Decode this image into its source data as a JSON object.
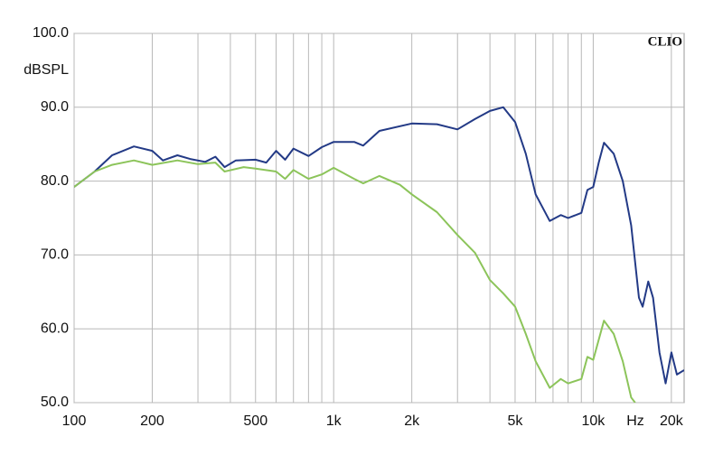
{
  "chart_data": {
    "type": "line",
    "watermark": "CLIO",
    "y_label": "dBSPL",
    "x_unit": "Hz",
    "log_x": true,
    "grid": true,
    "xlim": [
      100,
      22400
    ],
    "ylim": [
      50,
      100
    ],
    "xticks": [
      100,
      200,
      500,
      {
        "value": 1000,
        "label": "1k"
      },
      {
        "value": 2000,
        "label": "2k"
      },
      {
        "value": 5000,
        "label": "5k"
      },
      {
        "value": 10000,
        "label": "10k"
      },
      {
        "value": 20000,
        "label": "20k"
      }
    ],
    "xminor": [
      300,
      400,
      600,
      700,
      800,
      900,
      3000,
      4000,
      6000,
      7000,
      8000,
      9000
    ],
    "yticks": [
      {
        "value": 50,
        "label": "50.0"
      },
      {
        "value": 60,
        "label": "60.0"
      },
      {
        "value": 70,
        "label": "70.0"
      },
      {
        "value": 80,
        "label": "80.0"
      },
      {
        "value": 90,
        "label": "90.0"
      },
      {
        "value": 100,
        "label": "100.0"
      }
    ],
    "series": [
      {
        "color": "#233a86",
        "x": [
          100,
          120,
          140,
          170,
          200,
          220,
          250,
          280,
          320,
          350,
          380,
          420,
          500,
          550,
          600,
          650,
          700,
          800,
          900,
          1000,
          1200,
          1300,
          1500,
          2000,
          2500,
          3000,
          3500,
          4000,
          4500,
          5000,
          5500,
          6000,
          6800,
          7500,
          8000,
          9000,
          9500,
          10000,
          10500,
          11000,
          12000,
          13000,
          14000,
          15000,
          15500,
          16300,
          17000,
          18000,
          19000,
          20000,
          21000,
          22400
        ],
        "values": [
          79.2,
          81.3,
          83.5,
          84.7,
          84.1,
          82.8,
          83.5,
          83.0,
          82.6,
          83.3,
          81.9,
          82.8,
          82.9,
          82.5,
          84.1,
          82.9,
          84.4,
          83.4,
          84.6,
          85.3,
          85.3,
          84.8,
          86.8,
          87.8,
          87.7,
          87.0,
          88.4,
          89.5,
          90.0,
          88.0,
          83.7,
          78.2,
          74.6,
          75.4,
          75.0,
          75.7,
          78.8,
          79.2,
          82.5,
          85.2,
          83.7,
          80.0,
          74.0,
          64.2,
          63.0,
          66.4,
          64.2,
          56.8,
          52.6,
          56.8,
          53.8,
          54.4
        ]
      },
      {
        "color": "#8cc45a",
        "x": [
          100,
          120,
          140,
          170,
          200,
          250,
          300,
          350,
          380,
          450,
          500,
          600,
          650,
          700,
          800,
          900,
          1000,
          1200,
          1300,
          1500,
          1800,
          2000,
          2500,
          3000,
          3500,
          4000,
          4500,
          5000,
          5500,
          6000,
          6800,
          7500,
          8000,
          9000,
          9500,
          10000,
          11000,
          12000,
          13000,
          14000,
          14500
        ],
        "values": [
          79.2,
          81.3,
          82.2,
          82.8,
          82.2,
          82.8,
          82.3,
          82.5,
          81.3,
          81.9,
          81.7,
          81.3,
          80.3,
          81.5,
          80.3,
          80.9,
          81.8,
          80.3,
          79.7,
          80.7,
          79.5,
          78.2,
          75.8,
          72.7,
          70.3,
          66.6,
          64.8,
          63.0,
          59.3,
          55.6,
          52.0,
          53.2,
          52.6,
          53.2,
          56.2,
          55.8,
          61.1,
          59.3,
          55.6,
          50.7,
          50.0
        ]
      }
    ]
  }
}
